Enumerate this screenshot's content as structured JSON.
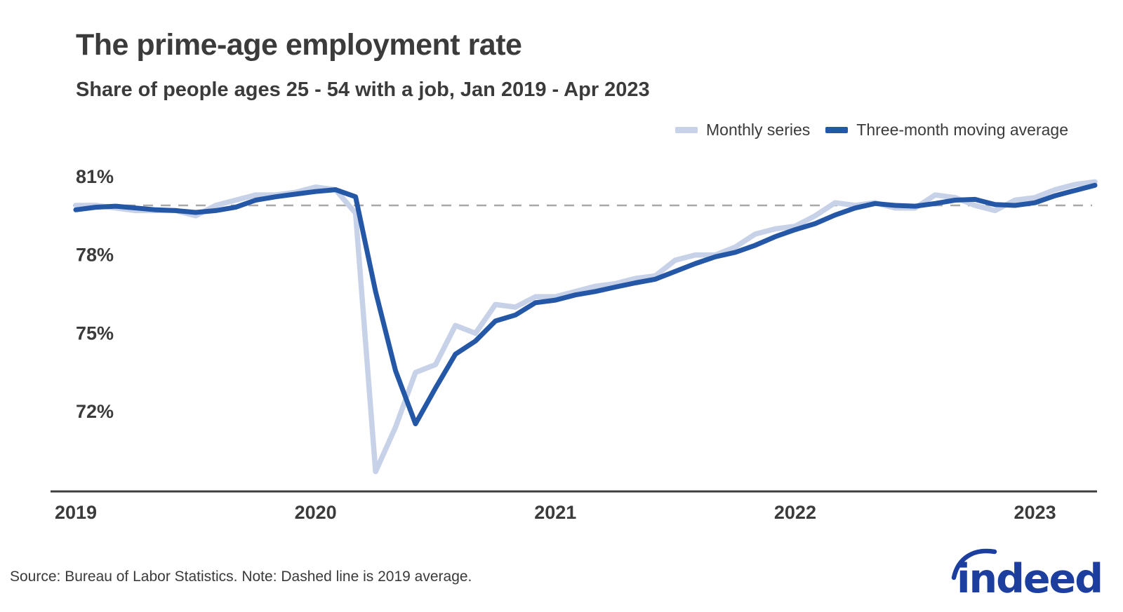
{
  "header": {
    "title": "The prime-age employment rate",
    "subtitle": "Share of people ages 25 - 54 with a job, Jan 2019 - Apr 2023"
  },
  "chart_data": {
    "type": "line",
    "title": "The prime-age employment rate",
    "subtitle": "Share of people ages 25 - 54 with a job, Jan 2019 - Apr 2023",
    "x_unit": "month",
    "x": [
      "2019-01",
      "2019-02",
      "2019-03",
      "2019-04",
      "2019-05",
      "2019-06",
      "2019-07",
      "2019-08",
      "2019-09",
      "2019-10",
      "2019-11",
      "2019-12",
      "2020-01",
      "2020-02",
      "2020-03",
      "2020-04",
      "2020-05",
      "2020-06",
      "2020-07",
      "2020-08",
      "2020-09",
      "2020-10",
      "2020-11",
      "2020-12",
      "2021-01",
      "2021-02",
      "2021-03",
      "2021-04",
      "2021-05",
      "2021-06",
      "2021-07",
      "2021-08",
      "2021-09",
      "2021-10",
      "2021-11",
      "2021-12",
      "2022-01",
      "2022-02",
      "2022-03",
      "2022-04",
      "2022-05",
      "2022-06",
      "2022-07",
      "2022-08",
      "2022-09",
      "2022-10",
      "2022-11",
      "2022-12",
      "2023-01",
      "2023-02",
      "2023-03",
      "2023-04"
    ],
    "series": [
      {
        "name": "Monthly series",
        "color": "#c7d2e8",
        "values": [
          79.9,
          79.9,
          79.8,
          79.7,
          79.7,
          79.7,
          79.5,
          79.9,
          80.1,
          80.3,
          80.3,
          80.4,
          80.6,
          80.5,
          79.6,
          69.7,
          71.4,
          73.5,
          73.8,
          75.3,
          75.0,
          76.1,
          76.0,
          76.4,
          76.4,
          76.6,
          76.8,
          76.9,
          77.1,
          77.2,
          77.8,
          78.0,
          78.0,
          78.3,
          78.8,
          79.0,
          79.1,
          79.5,
          80.0,
          79.9,
          80.0,
          79.8,
          79.8,
          80.3,
          80.2,
          79.9,
          79.7,
          80.1,
          80.2,
          80.5,
          80.7,
          80.8
        ]
      },
      {
        "name": "Three-month moving average",
        "color": "#2557a7",
        "values": [
          79.73,
          79.83,
          79.87,
          79.8,
          79.73,
          79.7,
          79.63,
          79.7,
          79.83,
          80.1,
          80.23,
          80.33,
          80.43,
          80.5,
          80.23,
          76.6,
          73.57,
          71.53,
          72.9,
          74.2,
          74.7,
          75.47,
          75.7,
          76.17,
          76.27,
          76.47,
          76.6,
          76.77,
          76.93,
          77.07,
          77.37,
          77.67,
          77.93,
          78.1,
          78.37,
          78.7,
          78.97,
          79.2,
          79.53,
          79.8,
          79.97,
          79.9,
          79.87,
          79.97,
          80.1,
          80.13,
          79.93,
          79.9,
          80.0,
          80.27,
          80.47,
          80.67
        ]
      }
    ],
    "yticks": [
      {
        "value": 81,
        "label": "81%"
      },
      {
        "value": 78,
        "label": "78%"
      },
      {
        "value": 75,
        "label": "75%"
      },
      {
        "value": 72,
        "label": "72%"
      }
    ],
    "xticks": [
      {
        "label": "2019",
        "index": 0
      },
      {
        "label": "2020",
        "index": 12
      },
      {
        "label": "2021",
        "index": 24
      },
      {
        "label": "2022",
        "index": 36
      },
      {
        "label": "2023",
        "index": 48
      }
    ],
    "baseline": {
      "value": 79.9,
      "label": "2019 average",
      "style": "dashed"
    },
    "ylim": [
      68.9,
      81.3
    ],
    "grid": false,
    "legend_position": "top-right"
  },
  "footer": {
    "note": "Source: Bureau of Labor Statistics. Note: Dashed line is 2019 average.",
    "logo_text": "indeed"
  },
  "colors": {
    "monthly_line": "#c7d2e8",
    "moving_average_line": "#2557a7",
    "baseline_dash": "#a8a8a8",
    "axis": "#3f3f3f",
    "text": "#3b3b3b",
    "logo": "#1c3e9e"
  }
}
